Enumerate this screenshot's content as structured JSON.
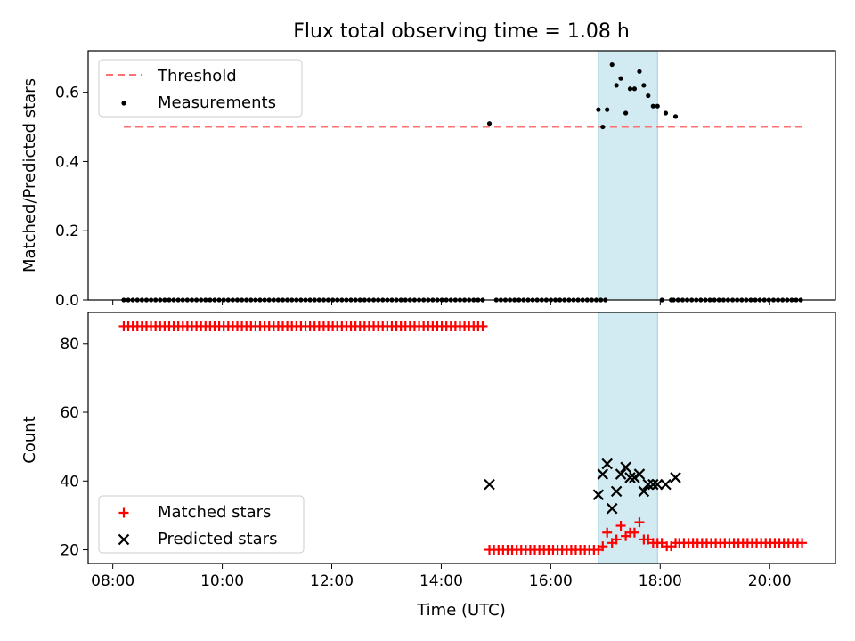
{
  "chart_data": {
    "title": "Flux total observing time = 1.08 h",
    "xlabel": "Time (UTC)",
    "x_ticks": [
      "08:00",
      "10:00",
      "12:00",
      "14:00",
      "16:00",
      "18:00",
      "20:00"
    ],
    "x_tick_values": [
      8,
      10,
      12,
      14,
      16,
      18,
      20
    ],
    "xlim": [
      7.55,
      21.2
    ],
    "highlight_span": [
      16.87,
      17.95
    ],
    "highlight_color": "#add8e6",
    "panels": [
      {
        "type": "scatter",
        "ylabel": "Matched/Predicted stars",
        "ylim": [
          0,
          0.72
        ],
        "y_ticks": [
          "0.0",
          "0.2",
          "0.4",
          "0.6"
        ],
        "y_tick_values": [
          0,
          0.2,
          0.4,
          0.6
        ],
        "legend_position": "top-left",
        "series": [
          {
            "name": "Threshold",
            "kind": "dashed-line",
            "color": "#ff7070",
            "x": [
              8.2,
              20.6
            ],
            "y": [
              0.5,
              0.5
            ]
          },
          {
            "name": "Measurements",
            "kind": "dot",
            "color": "#000000",
            "zero_run_start": 8.2,
            "zero_run_end": 20.6,
            "zero_run_step": 0.083,
            "points": [
              [
                14.88,
                0.51
              ],
              [
                16.87,
                0.55
              ],
              [
                16.95,
                0.5
              ],
              [
                17.03,
                0.55
              ],
              [
                17.12,
                0.68
              ],
              [
                17.2,
                0.62
              ],
              [
                17.28,
                0.64
              ],
              [
                17.37,
                0.54
              ],
              [
                17.45,
                0.61
              ],
              [
                17.53,
                0.61
              ],
              [
                17.62,
                0.66
              ],
              [
                17.7,
                0.62
              ],
              [
                17.78,
                0.59
              ],
              [
                17.87,
                0.56
              ],
              [
                17.95,
                0.56
              ],
              [
                18.03,
                0.0
              ],
              [
                18.1,
                0.54
              ],
              [
                18.2,
                0.0
              ],
              [
                18.28,
                0.53
              ]
            ],
            "zero_gaps": [
              [
                14.84,
                14.93
              ],
              [
                17.0,
                18.0
              ],
              [
                18.06,
                18.24
              ]
            ]
          }
        ]
      },
      {
        "type": "scatter",
        "ylabel": "Count",
        "ylim": [
          16,
          89
        ],
        "y_ticks": [
          "20",
          "40",
          "60",
          "80"
        ],
        "y_tick_values": [
          20,
          40,
          60,
          80
        ],
        "legend_position": "bottom-left",
        "series": [
          {
            "name": "Matched stars",
            "kind": "plus",
            "color": "#ff0000",
            "runs": [
              {
                "from": 8.2,
                "to": 14.8,
                "step": 0.083,
                "value": 85
              },
              {
                "from": 14.88,
                "to": 16.8,
                "step": 0.083,
                "value": 20
              },
              {
                "from": 18.35,
                "to": 20.6,
                "step": 0.083,
                "value": 22
              }
            ],
            "points": [
              [
                16.87,
                20
              ],
              [
                16.95,
                21
              ],
              [
                17.03,
                25
              ],
              [
                17.12,
                22
              ],
              [
                17.2,
                23
              ],
              [
                17.28,
                27
              ],
              [
                17.37,
                24
              ],
              [
                17.45,
                25
              ],
              [
                17.53,
                25
              ],
              [
                17.62,
                28
              ],
              [
                17.7,
                23
              ],
              [
                17.78,
                23
              ],
              [
                17.87,
                22
              ],
              [
                17.95,
                22
              ],
              [
                18.03,
                22
              ],
              [
                18.12,
                21
              ],
              [
                18.2,
                21
              ],
              [
                18.28,
                22
              ]
            ]
          },
          {
            "name": "Predicted stars",
            "kind": "x",
            "color": "#000000",
            "points": [
              [
                14.88,
                39
              ],
              [
                16.87,
                36
              ],
              [
                16.95,
                42
              ],
              [
                17.03,
                45
              ],
              [
                17.12,
                32
              ],
              [
                17.2,
                37
              ],
              [
                17.28,
                42
              ],
              [
                17.37,
                44
              ],
              [
                17.45,
                41
              ],
              [
                17.53,
                41
              ],
              [
                17.62,
                42
              ],
              [
                17.7,
                37
              ],
              [
                17.78,
                39
              ],
              [
                17.87,
                39
              ],
              [
                17.95,
                39
              ],
              [
                18.1,
                39
              ],
              [
                18.28,
                41
              ]
            ]
          }
        ]
      }
    ]
  }
}
